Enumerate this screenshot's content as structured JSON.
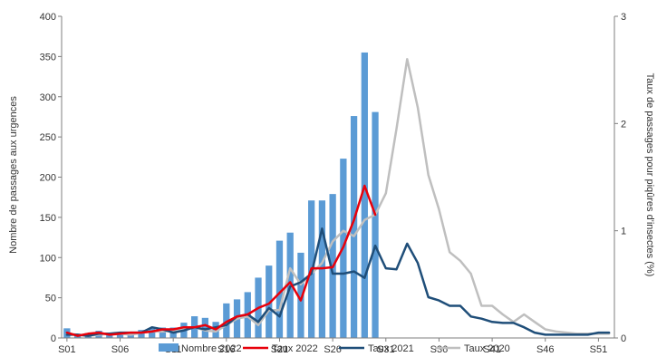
{
  "chart_data": {
    "type": "bar+line",
    "x_ticks": [
      "S01",
      "S06",
      "S11",
      "S16",
      "S21",
      "S26",
      "S31",
      "S36",
      "S41",
      "S46",
      "S51"
    ],
    "weeks": [
      "S01",
      "S02",
      "S03",
      "S04",
      "S05",
      "S06",
      "S07",
      "S08",
      "S09",
      "S10",
      "S11",
      "S12",
      "S13",
      "S14",
      "S15",
      "S16",
      "S17",
      "S18",
      "S19",
      "S20",
      "S21",
      "S22",
      "S23",
      "S24",
      "S25",
      "S26",
      "S27",
      "S28",
      "S29",
      "S30",
      "S31",
      "S32",
      "S33",
      "S34",
      "S35",
      "S36",
      "S37",
      "S38",
      "S39",
      "S40",
      "S41",
      "S42",
      "S43",
      "S44",
      "S45",
      "S46",
      "S47",
      "S48",
      "S49",
      "S50",
      "S51",
      "S52"
    ],
    "ylabel_left": "Nombre de passages aux urgences",
    "ylabel_right": "Taux de passages pour piqûres d'insectes (%)",
    "ylim_left": [
      0,
      400
    ],
    "ylim_right": [
      0,
      3
    ],
    "y_ticks_left": [
      "0",
      "50",
      "100",
      "150",
      "200",
      "250",
      "300",
      "350",
      "400"
    ],
    "y_ticks_right": [
      "0",
      "1",
      "2",
      "3"
    ],
    "series": [
      {
        "name": "Nombre 2022",
        "kind": "bar",
        "axis": "left",
        "color": "#5b9bd5",
        "values": [
          12,
          5,
          6,
          9,
          5,
          7,
          6,
          10,
          12,
          13,
          13,
          19,
          27,
          25,
          20,
          43,
          48,
          57,
          75,
          90,
          121,
          131,
          106,
          171,
          171,
          179,
          223,
          276,
          355,
          281
        ]
      },
      {
        "name": "Taux 2022",
        "kind": "line",
        "axis": "right",
        "color": "#e8000b",
        "values": [
          0.05,
          0.02,
          0.04,
          0.05,
          0.03,
          0.04,
          0.05,
          0.05,
          0.06,
          0.08,
          0.08,
          0.1,
          0.1,
          0.12,
          0.08,
          0.15,
          0.2,
          0.22,
          0.28,
          0.32,
          0.42,
          0.52,
          0.35,
          0.65,
          0.65,
          0.66,
          0.85,
          1.1,
          1.42,
          1.15
        ]
      },
      {
        "name": "Taux 2021",
        "kind": "line",
        "axis": "right",
        "color": "#1f4e79",
        "values": [
          0.03,
          0.03,
          0.02,
          0.04,
          0.04,
          0.05,
          0.05,
          0.05,
          0.1,
          0.08,
          0.05,
          0.07,
          0.1,
          0.08,
          0.1,
          0.12,
          0.2,
          0.22,
          0.15,
          0.28,
          0.2,
          0.48,
          0.52,
          0.6,
          1.02,
          0.6,
          0.6,
          0.62,
          0.56,
          0.86,
          0.65,
          0.64,
          0.88,
          0.7,
          0.38,
          0.35,
          0.3,
          0.3,
          0.2,
          0.18,
          0.15,
          0.14,
          0.14,
          0.1,
          0.05,
          0.03,
          0.03,
          0.03,
          0.03,
          0.03,
          0.05,
          0.05
        ]
      },
      {
        "name": "Taux 2020",
        "kind": "line",
        "axis": "right",
        "color": "#bfbfbf",
        "values": [
          0.04,
          0.03,
          0.02,
          0.03,
          0.04,
          0.04,
          0.03,
          0.05,
          0.06,
          0.06,
          0.07,
          0.08,
          0.1,
          0.07,
          0.06,
          0.12,
          0.18,
          0.2,
          0.12,
          0.26,
          0.26,
          0.65,
          0.5,
          0.6,
          0.7,
          0.9,
          1.0,
          0.95,
          1.1,
          1.15,
          1.35,
          1.95,
          2.6,
          2.15,
          1.52,
          1.2,
          0.8,
          0.72,
          0.6,
          0.3,
          0.3,
          0.22,
          0.15,
          0.22,
          0.15,
          0.08,
          0.06,
          0.05,
          0.04,
          0.04,
          0.04,
          0.04
        ]
      }
    ],
    "legend": {
      "placement": "bottom",
      "entries": [
        "Nombre 2022",
        "Taux 2022",
        "Taux 2021",
        "Taux 2020"
      ]
    }
  }
}
